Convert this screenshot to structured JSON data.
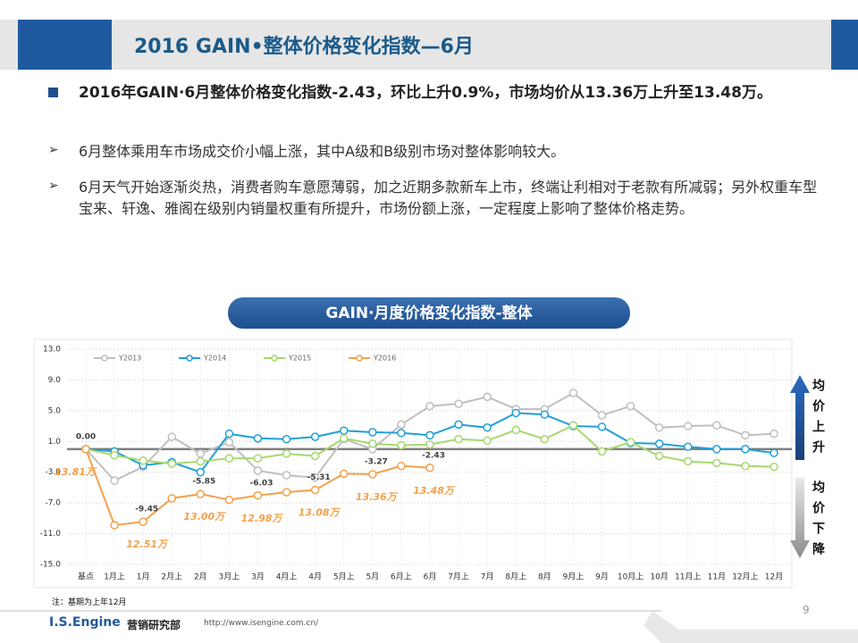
{
  "slide": {
    "title": "2016 GAIN•整体价格变化指数—6月",
    "bullets": [
      "2016年GAIN·6月整体价格变化指数-2.43，环比上升0.9%，市场均价从13.36万上升至13.48万。",
      "6月整体乘用车市场成交价小幅上涨，其中A级和B级别市场对整体影响较大。",
      "6月天气开始逐渐炎热，消费者购车意愿薄弱，加之近期多款新车上市，终端让利相对于老款有所减弱；另外权重车型宝来、轩逸、雅阁在级别内销量权重有所提升，市场份额上涨，一定程度上影响了整体价格走势。"
    ],
    "footnote": "注：基期为上年12月",
    "page_number": 9,
    "footer": {
      "brand": "I.S.Engine",
      "dept": "营销研究部",
      "url": "http://www.isengine.com.cn/"
    }
  },
  "chart_data": {
    "type": "line",
    "title": "GAIN·月度价格变化指数-整体",
    "categories": [
      "基点",
      "1月上",
      "1月",
      "2月上",
      "2月",
      "3月上",
      "3月",
      "4月上",
      "4月",
      "5月上",
      "5月",
      "6月上",
      "6月",
      "7月上",
      "7月",
      "8月上",
      "8月",
      "9月上",
      "9月",
      "10月上",
      "10月",
      "11月上",
      "11月",
      "12月上",
      "12月"
    ],
    "series": [
      {
        "name": "Y2013",
        "color": "#bfbfbf",
        "values": [
          0,
          -4.1,
          -2.3,
          1.6,
          -0.6,
          0.9,
          -2.8,
          -3.4,
          -3.7,
          1.3,
          0,
          3.2,
          5.6,
          5.9,
          6.8,
          5.2,
          5.2,
          7.3,
          4.4,
          5.6,
          2.8,
          3.0,
          3.1,
          1.8,
          2.0
        ]
      },
      {
        "name": "Y2014",
        "color": "#1fa0d8",
        "values": [
          0,
          -0.3,
          -2.1,
          -1.7,
          -3.0,
          2.0,
          1.4,
          1.3,
          1.6,
          2.4,
          2.2,
          2.1,
          1.8,
          3.2,
          2.8,
          4.7,
          4.5,
          3.0,
          2.9,
          0.8,
          0.7,
          0.3,
          0.0,
          0.0,
          -0.5
        ]
      },
      {
        "name": "Y2015",
        "color": "#a6d86e",
        "values": [
          0,
          -0.8,
          -1.5,
          -1.9,
          -1.6,
          -1.2,
          -1.2,
          -0.6,
          -0.9,
          1.4,
          0.7,
          0.5,
          0.6,
          1.3,
          1.1,
          2.5,
          1.3,
          3.1,
          -0.3,
          0.9,
          -0.9,
          -1.6,
          -1.8,
          -2.2,
          -2.3
        ]
      },
      {
        "name": "Y2016",
        "color": "#f5a04a",
        "values": [
          0,
          -9.9,
          -9.45,
          -6.4,
          -5.85,
          -6.6,
          -6.03,
          -5.6,
          -5.31,
          -3.2,
          -3.27,
          -2.2,
          -2.43,
          null,
          null,
          null,
          null,
          null,
          null,
          null,
          null,
          null,
          null,
          null,
          null
        ],
        "value_labels": [
          "0.00",
          null,
          "-9.45",
          null,
          "-5.85",
          null,
          "-6.03",
          null,
          "-5.31",
          null,
          "-3.27",
          null,
          "-2.43",
          null,
          null,
          null,
          null,
          null,
          null,
          null,
          null,
          null,
          null,
          null,
          null
        ],
        "price_labels": [
          "13.81万",
          null,
          "12.51万",
          null,
          "13.00万",
          null,
          "12.98万",
          null,
          "13.08万",
          null,
          "13.36万",
          null,
          "13.48万",
          null,
          null,
          null,
          null,
          null,
          null,
          null,
          null,
          null,
          null,
          null,
          null
        ]
      }
    ],
    "ylim": [
      -15,
      13
    ],
    "yticks": [
      {
        "value": 13,
        "label": "13.0"
      },
      {
        "value": 9,
        "label": "9.0"
      },
      {
        "value": 5,
        "label": "5.0"
      },
      {
        "value": 1,
        "label": "1.0"
      },
      {
        "value": -3,
        "label": "-3.0"
      },
      {
        "value": -7,
        "label": "-7.0"
      },
      {
        "value": -11,
        "label": "-11.0"
      },
      {
        "value": -15,
        "label": "-15.0"
      }
    ],
    "reference_line": 0,
    "grid": true,
    "legend": "top-left",
    "annotations": [
      "均价上升",
      "均价下降"
    ]
  }
}
